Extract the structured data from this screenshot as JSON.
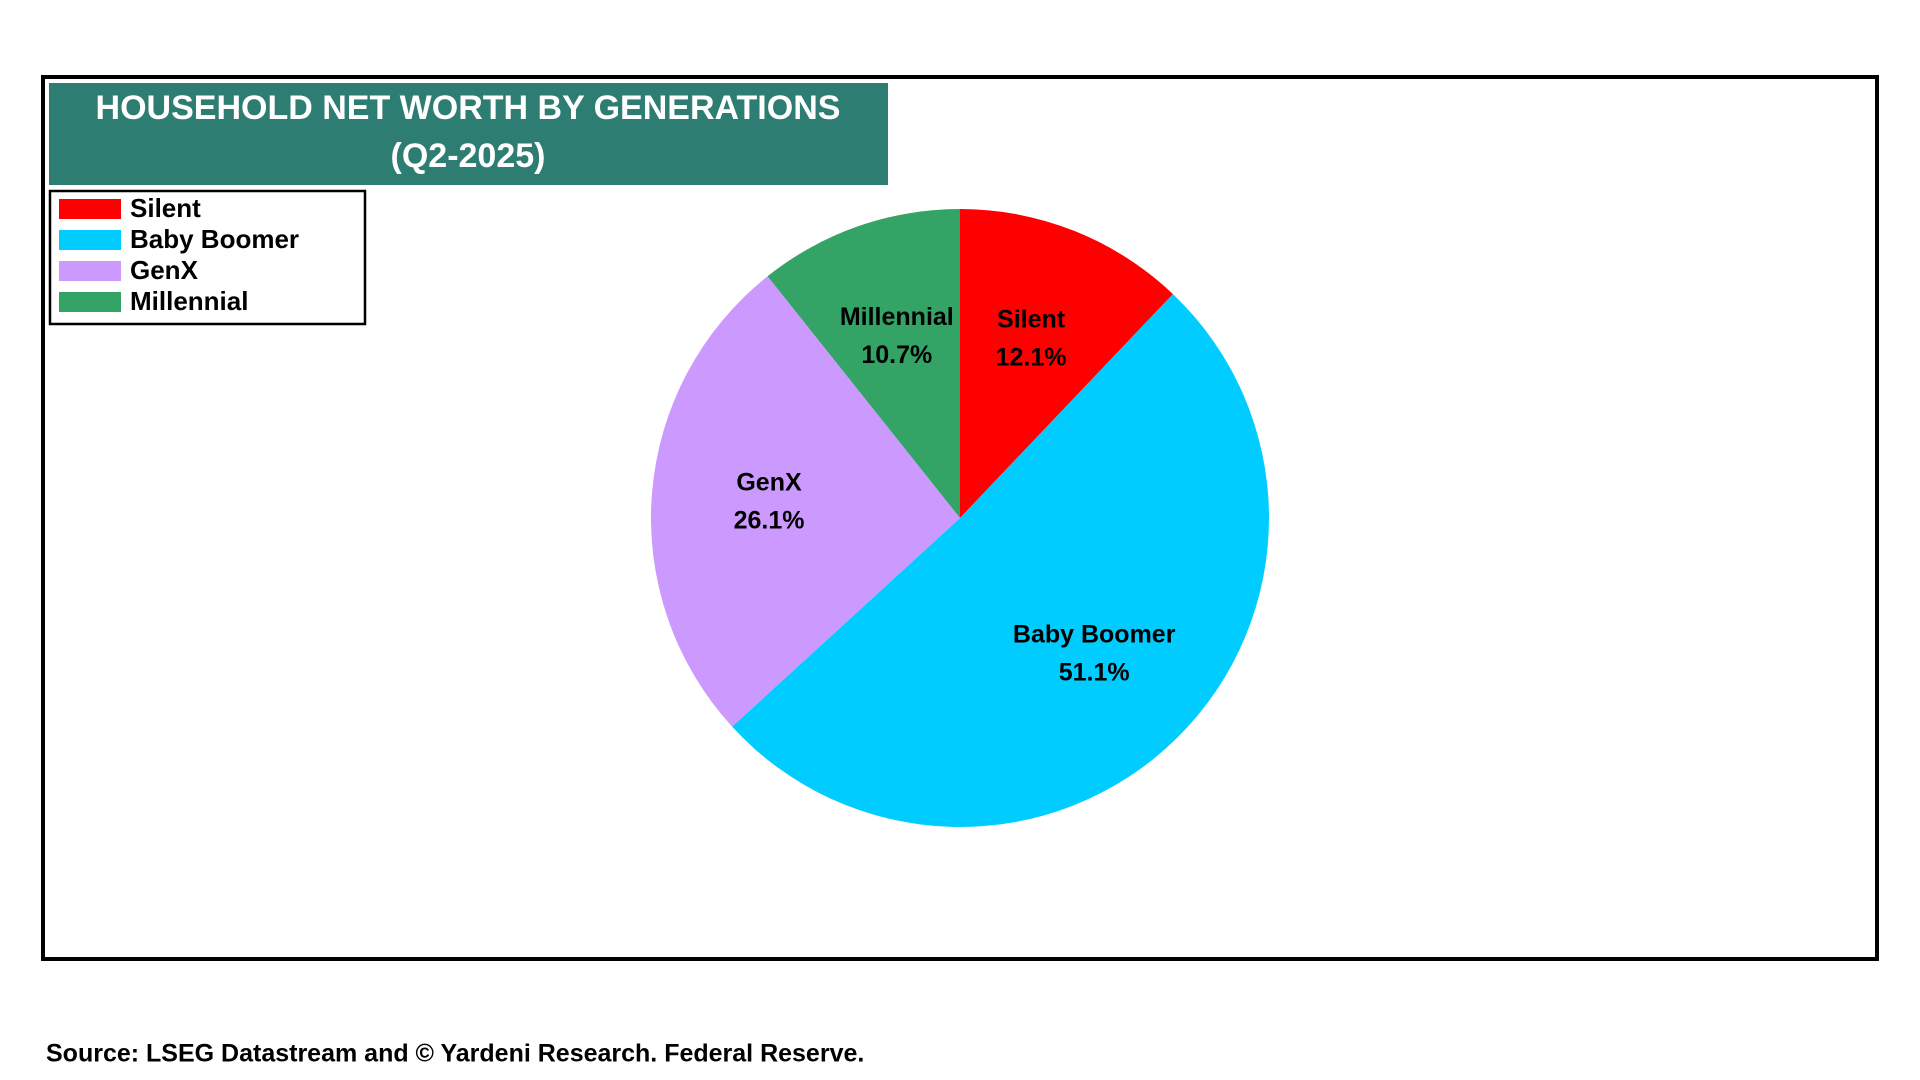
{
  "chart_data": {
    "type": "pie",
    "title": [
      "HOUSEHOLD NET WORTH BY GENERATIONS",
      "(Q2-2025)"
    ],
    "categories": [
      "Silent",
      "Baby Boomer",
      "GenX",
      "Millennial"
    ],
    "values": [
      12.1,
      51.1,
      26.1,
      10.7
    ],
    "value_labels": [
      "12.1%",
      "51.1%",
      "26.1%",
      "10.7%"
    ],
    "colors": [
      "#ff0000",
      "#00ccff",
      "#cc99ff",
      "#33a366"
    ],
    "legend": "upper-left",
    "source": "Source: LSEG Datastream and © Yardeni Research. Federal Reserve."
  }
}
